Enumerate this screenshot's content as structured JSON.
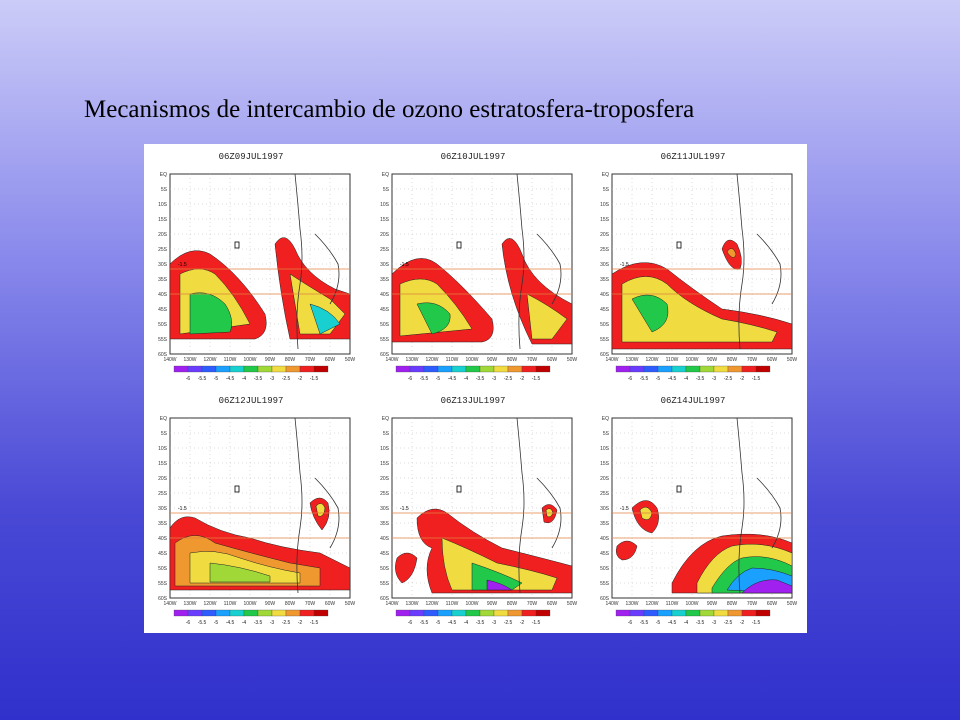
{
  "slide": {
    "title": "Mecanismos de intercambio de ozono estratosfera-troposfera"
  },
  "figure": {
    "panels": [
      {
        "title": "06Z09JUL1997"
      },
      {
        "title": "06Z10JUL1997"
      },
      {
        "title": "06Z11JUL1997"
      },
      {
        "title": "06Z12JUL1997"
      },
      {
        "title": "06Z13JUL1997"
      },
      {
        "title": "06Z14JUL1997"
      }
    ],
    "lat_ticks": [
      "EQ",
      "5S",
      "10S",
      "15S",
      "20S",
      "25S",
      "30S",
      "35S",
      "40S",
      "45S",
      "50S",
      "55S",
      "60S"
    ],
    "lon_ticks": [
      "140W",
      "130W",
      "120W",
      "110W",
      "100W",
      "90W",
      "80W",
      "70W",
      "60W",
      "50W"
    ],
    "colorbar_labels": [
      "-6",
      "-5.5",
      "-5",
      "-4.5",
      "-4",
      "-3.5",
      "-3",
      "-2.5",
      "-2",
      "-1.5"
    ],
    "colorbar_colors": [
      "#a020f0",
      "#6a3cff",
      "#2e5cff",
      "#1aa0ff",
      "#18d0d0",
      "#22c84a",
      "#a0d838",
      "#f0dc40",
      "#f09830",
      "#f02020",
      "#c00000"
    ],
    "contour_label": "-1.5"
  }
}
